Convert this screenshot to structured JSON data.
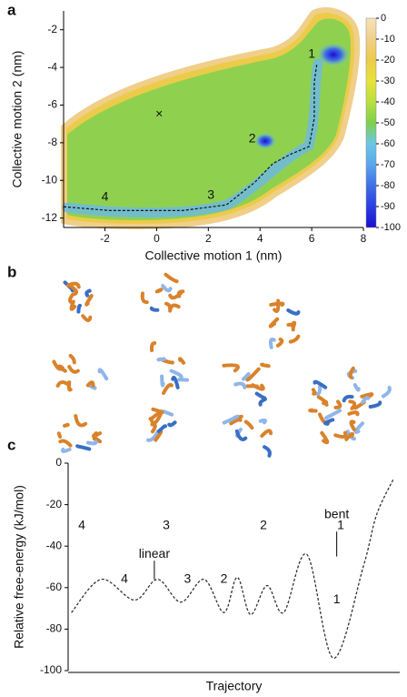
{
  "panel_letters": [
    "a",
    "b",
    "c"
  ],
  "chart_data": [
    {
      "type": "contour",
      "x_label": "Collective motion 1 (nm)",
      "y_label": "Collective motion 2 (nm)",
      "xlim": [
        -3.6,
        8
      ],
      "ylim": [
        -12.5,
        -1
      ],
      "xticks": [
        -2,
        0,
        2,
        4,
        6,
        8
      ],
      "yticks": [
        -2,
        -4,
        -6,
        -8,
        -10,
        -12
      ],
      "colorbar": {
        "ticks": [
          0,
          -10,
          -20,
          -30,
          -40,
          -50,
          -60,
          -70,
          -80,
          -90,
          -100
        ],
        "colors": [
          "#f7e3b8",
          "#f0cf8a",
          "#eccb4a",
          "#e8e23a",
          "#b8e040",
          "#7fd04a",
          "#6cc7e8",
          "#5aa6ec",
          "#3f6fe6",
          "#2a3fe0",
          "#1a0fd0"
        ]
      },
      "path": {
        "x": [
          -3.6,
          -1.8,
          1,
          2.7,
          3.8,
          4.5,
          5.2,
          5.9,
          6.1,
          6.1,
          6.2
        ],
        "y": [
          -11.4,
          -11.6,
          -11.6,
          -11.3,
          -10.1,
          -9.1,
          -8.6,
          -8.2,
          -6.7,
          -4.8,
          -3.8
        ]
      },
      "points": [
        {
          "text": "1",
          "x": 6.0,
          "y": -3.3
        },
        {
          "text": "2",
          "x": 3.7,
          "y": -7.8
        },
        {
          "text": "3",
          "x": 2.1,
          "y": -10.8
        },
        {
          "text": "4",
          "x": -2.0,
          "y": -10.9
        },
        {
          "text": "×",
          "x": 0.1,
          "y": -6.5
        }
      ]
    },
    {
      "type": "line",
      "x_label": "Trajectory",
      "y_label": "Relative free-energy (kJ/mol)",
      "xlim": [
        0,
        100
      ],
      "ylim": [
        -100,
        0
      ],
      "yticks": [
        0,
        -20,
        -40,
        -60,
        -80,
        -100
      ],
      "color": "#333333",
      "x": [
        1,
        10,
        20,
        27,
        34,
        41,
        47,
        51,
        55,
        60,
        65,
        72,
        80,
        89,
        93,
        98
      ],
      "values": [
        -72,
        -56,
        -66,
        -56,
        -67,
        -56,
        -72,
        -55,
        -73,
        -59,
        -72,
        -44,
        -94,
        -50,
        -25,
        -8
      ],
      "annotations": [
        {
          "text": "linear",
          "x": 26,
          "y": -44,
          "pointer": [
            -47,
            -56
          ]
        },
        {
          "text": "bent",
          "x": 81,
          "y": -25,
          "pointer": [
            -33,
            -45
          ]
        },
        {
          "text": "4",
          "x": 17,
          "y": -56
        },
        {
          "text": "3",
          "x": 36,
          "y": -56
        },
        {
          "text": "2",
          "x": 47,
          "y": -56
        },
        {
          "text": "1",
          "x": 81,
          "y": -66
        }
      ]
    }
  ],
  "structures": {
    "labels": [
      "4",
      "3",
      "2",
      "1"
    ]
  }
}
